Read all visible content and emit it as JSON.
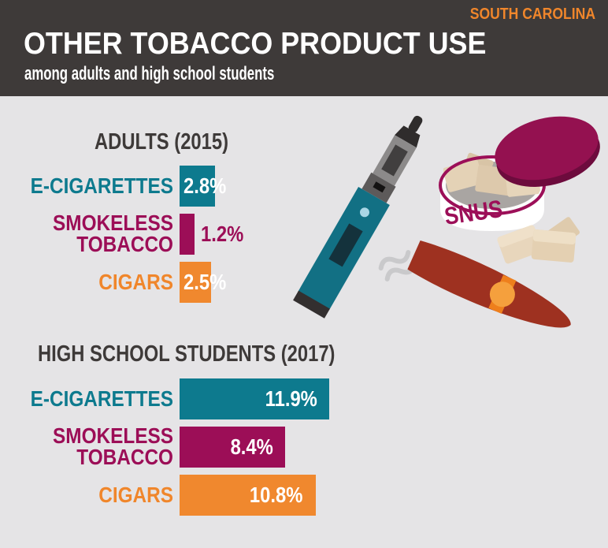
{
  "header": {
    "region": "SOUTH CAROLINA",
    "title": "OTHER TOBACCO PRODUCT USE",
    "subtitle": "among adults and high school students"
  },
  "colors": {
    "page_background": "#e5e4e6",
    "header_background": "#3e3a39",
    "accent_orange": "#f0862b",
    "teal": "#0d7a8e",
    "magenta": "#9c0e57",
    "dark_text": "#3e3a39",
    "white": "#ffffff",
    "cigar_red": "#9e3120",
    "smoke_gray": "#c9c9cb"
  },
  "chart_data": [
    {
      "type": "bar",
      "orientation": "horizontal",
      "title": "ADULTS (2015)",
      "categories": [
        "E-CIGARETTES",
        "SMOKELESS TOBACCO",
        "CIGARS"
      ],
      "values": [
        2.8,
        1.2,
        2.5
      ],
      "value_labels": [
        "2.8%",
        "1.2%",
        "2.5%"
      ],
      "unit": "%",
      "xlim": [
        0,
        12
      ],
      "grid": false,
      "legend": "none",
      "bar_colors": [
        "#0d7a8e",
        "#9c0e57",
        "#f0882e"
      ],
      "label_colors": [
        "#0d7a8e",
        "#9c0e57",
        "#f0862b"
      ],
      "value_label_positions": [
        "inside-left",
        "outside-right",
        "inside-left"
      ]
    },
    {
      "type": "bar",
      "orientation": "horizontal",
      "title": "HIGH SCHOOL STUDENTS (2017)",
      "categories": [
        "E-CIGARETTES",
        "SMOKELESS TOBACCO",
        "CIGARS"
      ],
      "values": [
        11.9,
        8.4,
        10.8
      ],
      "value_labels": [
        "11.9%",
        "8.4%",
        "10.8%"
      ],
      "unit": "%",
      "xlim": [
        0,
        12
      ],
      "grid": false,
      "legend": "none",
      "bar_colors": [
        "#0d7a8e",
        "#9c0e57",
        "#f0882e"
      ],
      "label_colors": [
        "#0d7a8e",
        "#9c0e57",
        "#f0862b"
      ],
      "value_label_positions": [
        "inside-right",
        "inside-right",
        "inside-right"
      ]
    }
  ],
  "illustrations": {
    "snus_tin_label": "SNUS",
    "items": [
      "e-cigarette vape pen",
      "snus tin with pouches and lid",
      "cigar with orange band and smoke"
    ]
  }
}
